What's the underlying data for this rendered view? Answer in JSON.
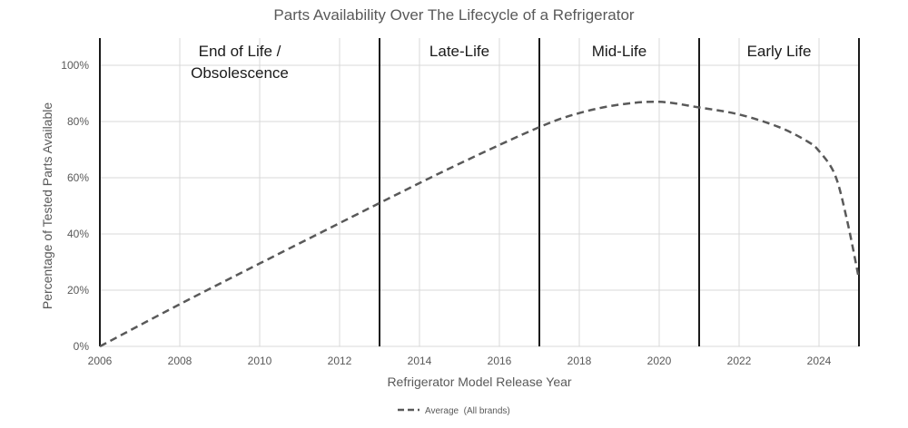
{
  "chart_data": {
    "type": "line",
    "title": "Parts Availability Over The Lifecycle of a Refrigerator",
    "xlabel": "Refrigerator Model Release Year",
    "ylabel": "Percentage of Tested Parts Available",
    "xlim": [
      2006,
      2025
    ],
    "ylim": [
      0,
      100
    ],
    "x_ticks": [
      2006,
      2008,
      2010,
      2012,
      2014,
      2016,
      2018,
      2020,
      2022,
      2024
    ],
    "x_tick_labels": [
      "2006",
      "2008",
      "2010",
      "2012",
      "2014",
      "2016",
      "2018",
      "2020",
      "2022",
      "2024"
    ],
    "y_ticks": [
      0,
      20,
      40,
      60,
      80,
      100
    ],
    "y_tick_labels": [
      "0%",
      "20%",
      "40%",
      "60%",
      "80%",
      "100%"
    ],
    "grid": true,
    "legend_placement": "bottom",
    "series": [
      {
        "name": "Average  (All brands)",
        "color": "#595959",
        "style": "dashed",
        "x": [
          2006,
          2008,
          2010,
          2013,
          2015,
          2017,
          2018,
          2019,
          2020,
          2021,
          2022,
          2023,
          2023.7,
          2024,
          2024.4,
          2024.7,
          2025
        ],
        "y": [
          0,
          15,
          29.5,
          51,
          65,
          78,
          83,
          86,
          87,
          85,
          82.5,
          78,
          73,
          69.5,
          61,
          45,
          24
        ]
      }
    ],
    "phase_boundaries": [
      2006,
      2013,
      2017,
      2021,
      2025
    ],
    "phases": [
      {
        "label_lines": [
          "End of Life /",
          "Obsolescence"
        ],
        "from": 2006,
        "to": 2013
      },
      {
        "label_lines": [
          "Late-Life"
        ],
        "from": 2013,
        "to": 2017
      },
      {
        "label_lines": [
          "Mid-Life"
        ],
        "from": 2017,
        "to": 2021
      },
      {
        "label_lines": [
          "Early Life"
        ],
        "from": 2021,
        "to": 2025
      }
    ]
  }
}
